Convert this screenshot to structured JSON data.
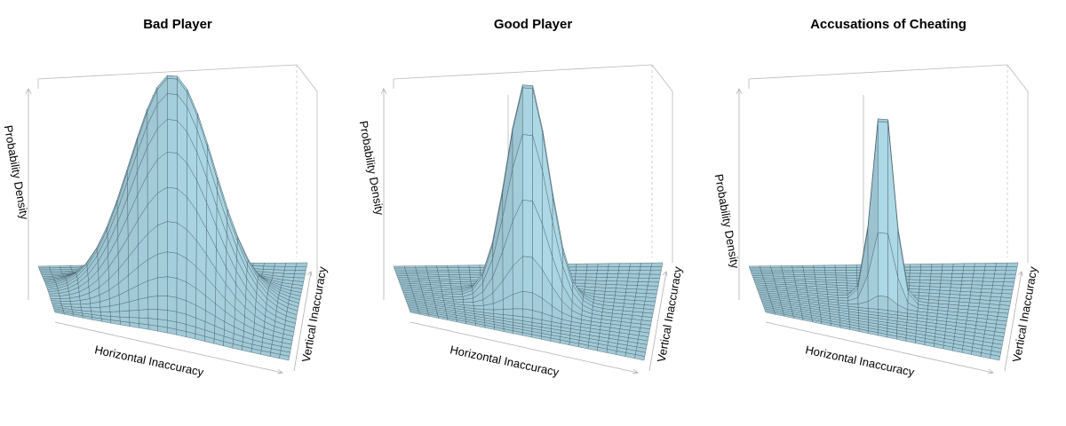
{
  "chart_data": [
    {
      "type": "surface",
      "title": "Bad Player",
      "xlabel": "Horizontal Inaccuracy",
      "ylabel": "Vertical Inaccuracy",
      "zlabel": "Probability Density",
      "distribution": "bivariate normal",
      "relative_spread_sd": 1.0,
      "grid_size": 25,
      "surface_color": "#add8e6"
    },
    {
      "type": "surface",
      "title": "Good Player",
      "xlabel": "Horizontal Inaccuracy",
      "ylabel": "Vertical Inaccuracy",
      "zlabel": "Probability Density",
      "distribution": "bivariate normal",
      "relative_spread_sd": 0.5,
      "grid_size": 25,
      "surface_color": "#add8e6"
    },
    {
      "type": "surface",
      "title": "Accusations of Cheating",
      "xlabel": "Horizontal Inaccuracy",
      "ylabel": "Vertical Inaccuracy",
      "zlabel": "Probability Density",
      "distribution": "bivariate normal",
      "relative_spread_sd": 0.25,
      "grid_size": 25,
      "surface_color": "#add8e6"
    }
  ]
}
